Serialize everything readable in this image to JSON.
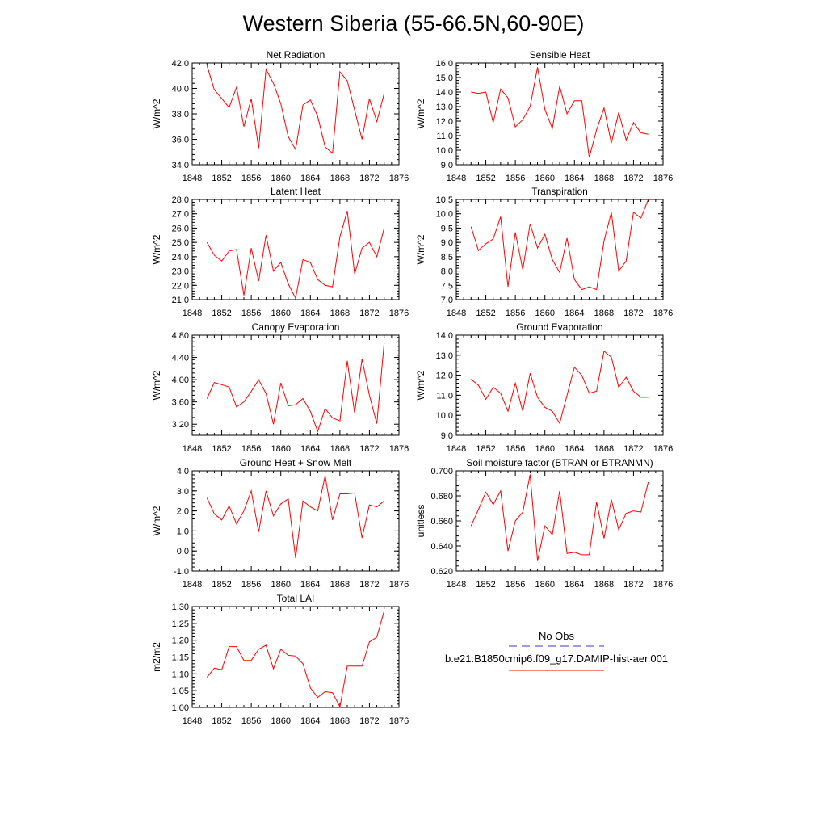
{
  "page": {
    "title": "Western Siberia (55-66.5N,60-90E)"
  },
  "legend": {
    "obs_label": "No Obs",
    "obs_color": "#3b3bb8",
    "model_label": "b.e21.B1850cmip6.f09_g17.DAMIP-hist-aer.001",
    "model_color": "#ff0000"
  },
  "chart_data": [
    {
      "type": "line",
      "title": "Net Radiation",
      "ylabel": "W/m^2",
      "xlim": [
        1848,
        1876
      ],
      "x_ticks": [
        "1848",
        "1852",
        "1856",
        "1860",
        "1864",
        "1868",
        "1872",
        "1876"
      ],
      "ylim": [
        34.0,
        42.0
      ],
      "y_ticks": [
        "34.0",
        "36.0",
        "38.0",
        "40.0",
        "42.0"
      ],
      "y_tick_values": [
        34,
        36,
        38,
        40,
        42
      ],
      "series": [
        {
          "x": [
            1850,
            1851,
            1852,
            1853,
            1854,
            1855,
            1856,
            1857,
            1858,
            1859,
            1860,
            1861,
            1862,
            1863,
            1864,
            1865,
            1866,
            1867,
            1868,
            1869,
            1870,
            1871,
            1872,
            1873,
            1874
          ],
          "values": [
            41.8,
            39.9,
            39.2,
            38.5,
            40.1,
            37.0,
            39.2,
            35.3,
            41.5,
            40.4,
            38.8,
            36.2,
            35.2,
            38.7,
            39.1,
            37.8,
            35.4,
            34.9,
            41.3,
            40.6,
            38.3,
            36.0,
            39.2,
            37.4,
            39.6
          ]
        }
      ]
    },
    {
      "type": "line",
      "title": "Sensible Heat",
      "ylabel": "W/m^2",
      "xlim": [
        1848,
        1876
      ],
      "x_ticks": [
        "1848",
        "1852",
        "1856",
        "1860",
        "1864",
        "1868",
        "1872",
        "1876"
      ],
      "ylim": [
        9.0,
        16.0
      ],
      "y_ticks": [
        "9.0",
        "10.0",
        "11.0",
        "12.0",
        "13.0",
        "14.0",
        "15.0",
        "16.0"
      ],
      "y_tick_values": [
        9,
        10,
        11,
        12,
        13,
        14,
        15,
        16
      ],
      "series": [
        {
          "x": [
            1850,
            1851,
            1852,
            1853,
            1854,
            1855,
            1856,
            1857,
            1858,
            1859,
            1860,
            1861,
            1862,
            1863,
            1864,
            1865,
            1866,
            1867,
            1868,
            1869,
            1870,
            1871,
            1872,
            1873,
            1874
          ],
          "values": [
            14.0,
            13.9,
            14.0,
            11.9,
            14.2,
            13.6,
            11.6,
            12.1,
            13.0,
            15.7,
            12.8,
            11.5,
            14.4,
            12.5,
            13.4,
            13.4,
            9.5,
            11.4,
            12.9,
            10.5,
            12.6,
            10.7,
            11.9,
            11.2,
            11.1
          ]
        }
      ]
    },
    {
      "type": "line",
      "title": "Latent Heat",
      "ylabel": "W/m^2",
      "xlim": [
        1848,
        1876
      ],
      "x_ticks": [
        "1848",
        "1852",
        "1856",
        "1860",
        "1864",
        "1868",
        "1872",
        "1876"
      ],
      "ylim": [
        21.0,
        28.0
      ],
      "y_ticks": [
        "21.0",
        "22.0",
        "23.0",
        "24.0",
        "25.0",
        "26.0",
        "27.0",
        "28.0"
      ],
      "y_tick_values": [
        21,
        22,
        23,
        24,
        25,
        26,
        27,
        28
      ],
      "series": [
        {
          "x": [
            1850,
            1851,
            1852,
            1853,
            1854,
            1855,
            1856,
            1857,
            1858,
            1859,
            1860,
            1861,
            1862,
            1863,
            1864,
            1865,
            1866,
            1867,
            1868,
            1869,
            1870,
            1871,
            1872,
            1873,
            1874
          ],
          "values": [
            25.0,
            24.1,
            23.7,
            24.4,
            24.5,
            21.3,
            24.6,
            22.3,
            25.5,
            23.0,
            23.6,
            22.1,
            21.1,
            23.8,
            23.6,
            22.4,
            22.0,
            21.9,
            25.4,
            27.2,
            22.8,
            24.6,
            25.0,
            24.0,
            26.0
          ]
        }
      ]
    },
    {
      "type": "line",
      "title": "Transpiration",
      "ylabel": "W/m^2",
      "xlim": [
        1848,
        1876
      ],
      "x_ticks": [
        "1848",
        "1852",
        "1856",
        "1860",
        "1864",
        "1868",
        "1872",
        "1876"
      ],
      "ylim": [
        7.0,
        10.5
      ],
      "y_ticks": [
        "7.0",
        "7.5",
        "8.0",
        "8.5",
        "9.0",
        "9.5",
        "10.0",
        "10.5"
      ],
      "y_tick_values": [
        7.0,
        7.5,
        8.0,
        8.5,
        9.0,
        9.5,
        10.0,
        10.5
      ],
      "series": [
        {
          "x": [
            1850,
            1851,
            1852,
            1853,
            1854,
            1855,
            1856,
            1857,
            1858,
            1859,
            1860,
            1861,
            1862,
            1863,
            1864,
            1865,
            1866,
            1867,
            1868,
            1869,
            1870,
            1871,
            1872,
            1873,
            1874
          ],
          "values": [
            9.55,
            8.72,
            8.95,
            9.12,
            9.9,
            7.45,
            9.35,
            8.05,
            9.65,
            8.8,
            9.28,
            8.4,
            7.95,
            9.15,
            7.7,
            7.35,
            7.45,
            7.35,
            9.05,
            10.05,
            8.0,
            8.35,
            10.05,
            9.85,
            10.5
          ]
        }
      ]
    },
    {
      "type": "line",
      "title": "Canopy Evaporation",
      "ylabel": "W/m^2",
      "xlim": [
        1848,
        1876
      ],
      "x_ticks": [
        "1848",
        "1852",
        "1856",
        "1860",
        "1864",
        "1868",
        "1872",
        "1876"
      ],
      "ylim": [
        3.0,
        4.8
      ],
      "y_ticks": [
        "3.20",
        "3.60",
        "4.00",
        "4.40",
        "4.80"
      ],
      "y_tick_values": [
        3.2,
        3.6,
        4.0,
        4.4,
        4.8
      ],
      "series": [
        {
          "x": [
            1850,
            1851,
            1852,
            1853,
            1854,
            1855,
            1856,
            1857,
            1858,
            1859,
            1860,
            1861,
            1862,
            1863,
            1864,
            1865,
            1866,
            1867,
            1868,
            1869,
            1870,
            1871,
            1872,
            1873,
            1874
          ],
          "values": [
            3.66,
            3.95,
            3.91,
            3.87,
            3.51,
            3.6,
            3.79,
            4.0,
            3.75,
            3.2,
            3.94,
            3.53,
            3.55,
            3.66,
            3.43,
            3.07,
            3.48,
            3.31,
            3.26,
            4.34,
            3.4,
            4.37,
            3.72,
            3.21,
            4.66
          ]
        }
      ]
    },
    {
      "type": "line",
      "title": "Ground Evaporation",
      "ylabel": "W/m^2",
      "xlim": [
        1848,
        1876
      ],
      "x_ticks": [
        "1848",
        "1852",
        "1856",
        "1860",
        "1864",
        "1868",
        "1872",
        "1876"
      ],
      "ylim": [
        9.0,
        14.0
      ],
      "y_ticks": [
        "9.0",
        "10.0",
        "11.0",
        "12.0",
        "13.0",
        "14.0"
      ],
      "y_tick_values": [
        9,
        10,
        11,
        12,
        13,
        14
      ],
      "series": [
        {
          "x": [
            1850,
            1851,
            1852,
            1853,
            1854,
            1855,
            1856,
            1857,
            1858,
            1859,
            1860,
            1861,
            1862,
            1863,
            1864,
            1865,
            1866,
            1867,
            1868,
            1869,
            1870,
            1871,
            1872,
            1873,
            1874
          ],
          "values": [
            11.8,
            11.5,
            10.8,
            11.4,
            11.1,
            10.2,
            11.6,
            10.2,
            12.1,
            10.9,
            10.4,
            10.2,
            9.6,
            11.0,
            12.4,
            12.0,
            11.1,
            11.2,
            13.2,
            12.9,
            11.4,
            11.9,
            11.2,
            10.9,
            10.9
          ]
        }
      ]
    },
    {
      "type": "line",
      "title": "Ground Heat + Snow Melt",
      "ylabel": "W/m^2",
      "xlim": [
        1848,
        1876
      ],
      "x_ticks": [
        "1848",
        "1852",
        "1856",
        "1860",
        "1864",
        "1868",
        "1872",
        "1876"
      ],
      "ylim": [
        -1.0,
        4.0
      ],
      "y_ticks": [
        "-1.0",
        "0.0",
        "1.0",
        "2.0",
        "3.0",
        "4.0"
      ],
      "y_tick_values": [
        -1,
        0,
        1,
        2,
        3,
        4
      ],
      "series": [
        {
          "x": [
            1850,
            1851,
            1852,
            1853,
            1854,
            1855,
            1856,
            1857,
            1858,
            1859,
            1860,
            1861,
            1862,
            1863,
            1864,
            1865,
            1866,
            1867,
            1868,
            1869,
            1870,
            1871,
            1872,
            1873,
            1874
          ],
          "values": [
            2.65,
            1.85,
            1.55,
            2.25,
            1.35,
            2.0,
            3.0,
            0.95,
            3.0,
            1.75,
            2.35,
            2.6,
            -0.35,
            2.5,
            2.2,
            2.0,
            3.75,
            1.55,
            2.85,
            2.85,
            2.9,
            0.65,
            2.3,
            2.2,
            2.5
          ]
        }
      ]
    },
    {
      "type": "line",
      "title": "Soil moisture factor (BTRAN or BTRANMN)",
      "ylabel": "unitless",
      "xlim": [
        1848,
        1876
      ],
      "x_ticks": [
        "1848",
        "1852",
        "1856",
        "1860",
        "1864",
        "1868",
        "1872",
        "1876"
      ],
      "ylim": [
        0.62,
        0.7
      ],
      "y_ticks": [
        "0.620",
        "0.640",
        "0.660",
        "0.680",
        "0.700"
      ],
      "y_tick_values": [
        0.62,
        0.64,
        0.66,
        0.68,
        0.7
      ],
      "series": [
        {
          "x": [
            1850,
            1851,
            1852,
            1853,
            1854,
            1855,
            1856,
            1857,
            1858,
            1859,
            1860,
            1861,
            1862,
            1863,
            1864,
            1865,
            1866,
            1867,
            1868,
            1869,
            1870,
            1871,
            1872,
            1873,
            1874
          ],
          "values": [
            0.656,
            0.669,
            0.683,
            0.673,
            0.684,
            0.636,
            0.66,
            0.667,
            0.697,
            0.628,
            0.656,
            0.649,
            0.684,
            0.634,
            0.635,
            0.633,
            0.633,
            0.675,
            0.646,
            0.677,
            0.653,
            0.666,
            0.668,
            0.667,
            0.691
          ]
        }
      ]
    },
    {
      "type": "line",
      "title": "Total LAI",
      "ylabel": "m2/m2",
      "xlim": [
        1848,
        1876
      ],
      "x_ticks": [
        "1848",
        "1852",
        "1856",
        "1860",
        "1864",
        "1868",
        "1872",
        "1876"
      ],
      "ylim": [
        1.0,
        1.3
      ],
      "y_ticks": [
        "1.00",
        "1.05",
        "1.10",
        "1.15",
        "1.20",
        "1.25",
        "1.30"
      ],
      "y_tick_values": [
        1.0,
        1.05,
        1.1,
        1.15,
        1.2,
        1.25,
        1.3
      ],
      "series": [
        {
          "x": [
            1850,
            1851,
            1852,
            1853,
            1854,
            1855,
            1856,
            1857,
            1858,
            1859,
            1860,
            1861,
            1862,
            1863,
            1864,
            1865,
            1866,
            1867,
            1868,
            1869,
            1870,
            1871,
            1872,
            1873,
            1874
          ],
          "values": [
            1.09,
            1.117,
            1.112,
            1.181,
            1.181,
            1.14,
            1.14,
            1.173,
            1.185,
            1.115,
            1.173,
            1.155,
            1.153,
            1.13,
            1.058,
            1.03,
            1.047,
            1.044,
            1.002,
            1.123,
            1.123,
            1.123,
            1.195,
            1.209,
            1.287
          ]
        }
      ]
    }
  ]
}
